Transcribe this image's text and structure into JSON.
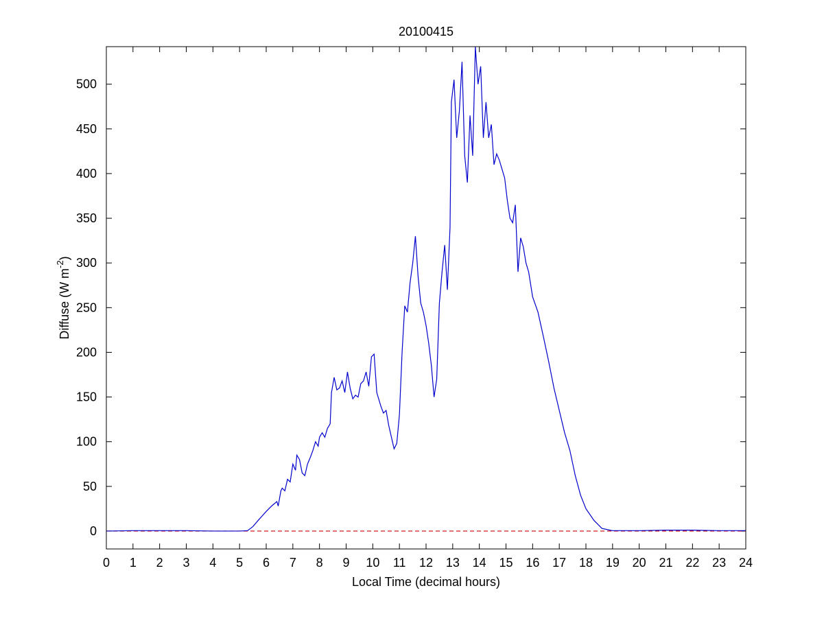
{
  "chart_data": {
    "type": "line",
    "title": "20100415",
    "xlabel": "Local Time (decimal hours)",
    "ylabel": {
      "text": "Diffuse (W m",
      "superscript": "-2",
      "end": ")"
    },
    "x": [
      0,
      1,
      2,
      3,
      4,
      5,
      5.3,
      5.5,
      5.7,
      6.0,
      6.2,
      6.4,
      6.45,
      6.55,
      6.6,
      6.7,
      6.8,
      6.9,
      7.0,
      7.1,
      7.15,
      7.25,
      7.35,
      7.45,
      7.55,
      7.65,
      7.75,
      7.85,
      7.95,
      8.0,
      8.1,
      8.2,
      8.3,
      8.4,
      8.45,
      8.55,
      8.65,
      8.75,
      8.85,
      8.95,
      9.05,
      9.15,
      9.25,
      9.35,
      9.45,
      9.55,
      9.65,
      9.75,
      9.85,
      9.95,
      10.05,
      10.15,
      10.3,
      10.4,
      10.5,
      10.6,
      10.7,
      10.8,
      10.9,
      11.0,
      11.1,
      11.2,
      11.3,
      11.4,
      11.5,
      11.6,
      11.7,
      11.8,
      11.9,
      12.0,
      12.1,
      12.2,
      12.3,
      12.4,
      12.5,
      12.6,
      12.7,
      12.8,
      12.9,
      12.95,
      13.05,
      13.15,
      13.25,
      13.35,
      13.45,
      13.55,
      13.65,
      13.75,
      13.85,
      13.95,
      14.05,
      14.15,
      14.25,
      14.35,
      14.45,
      14.55,
      14.65,
      14.75,
      14.85,
      14.95,
      15.05,
      15.15,
      15.25,
      15.35,
      15.45,
      15.55,
      15.65,
      15.75,
      15.85,
      16.0,
      16.2,
      16.4,
      16.6,
      16.8,
      17.0,
      17.2,
      17.4,
      17.6,
      17.8,
      18.0,
      18.3,
      18.6,
      18.9,
      19.0,
      20,
      21,
      21.5,
      22,
      23,
      24
    ],
    "series": [
      {
        "name": "Diffuse",
        "color": "#0000cc",
        "values": [
          0,
          0.5,
          0.5,
          0.5,
          0,
          0,
          0.5,
          5,
          12,
          22,
          28,
          33,
          28,
          45,
          48,
          45,
          58,
          55,
          75,
          68,
          85,
          80,
          65,
          62,
          75,
          82,
          90,
          100,
          95,
          105,
          110,
          105,
          115,
          120,
          155,
          172,
          158,
          160,
          168,
          155,
          178,
          160,
          148,
          152,
          150,
          165,
          168,
          178,
          162,
          195,
          198,
          155,
          140,
          132,
          135,
          118,
          105,
          92,
          98,
          130,
          200,
          252,
          245,
          278,
          300,
          330,
          285,
          255,
          245,
          230,
          210,
          185,
          150,
          170,
          255,
          290,
          320,
          270,
          340,
          480,
          505,
          440,
          470,
          525,
          420,
          390,
          465,
          420,
          542,
          500,
          520,
          440,
          480,
          440,
          455,
          410,
          422,
          415,
          405,
          395,
          370,
          350,
          345,
          365,
          290,
          328,
          318,
          300,
          290,
          262,
          245,
          218,
          190,
          160,
          135,
          110,
          90,
          62,
          40,
          25,
          12,
          3,
          1,
          0.5,
          0.5,
          1,
          1,
          1,
          0.5,
          0.5
        ]
      }
    ],
    "reference_line": {
      "value": 0,
      "color": "#cc0000"
    },
    "xlim": [
      0,
      24
    ],
    "xticks": [
      0,
      1,
      2,
      3,
      4,
      5,
      6,
      7,
      8,
      9,
      10,
      11,
      12,
      13,
      14,
      15,
      16,
      17,
      18,
      19,
      20,
      21,
      22,
      23,
      24
    ],
    "ylim": [
      -20,
      542
    ],
    "yticks": [
      0,
      50,
      100,
      150,
      200,
      250,
      300,
      350,
      400,
      450,
      500
    ]
  }
}
